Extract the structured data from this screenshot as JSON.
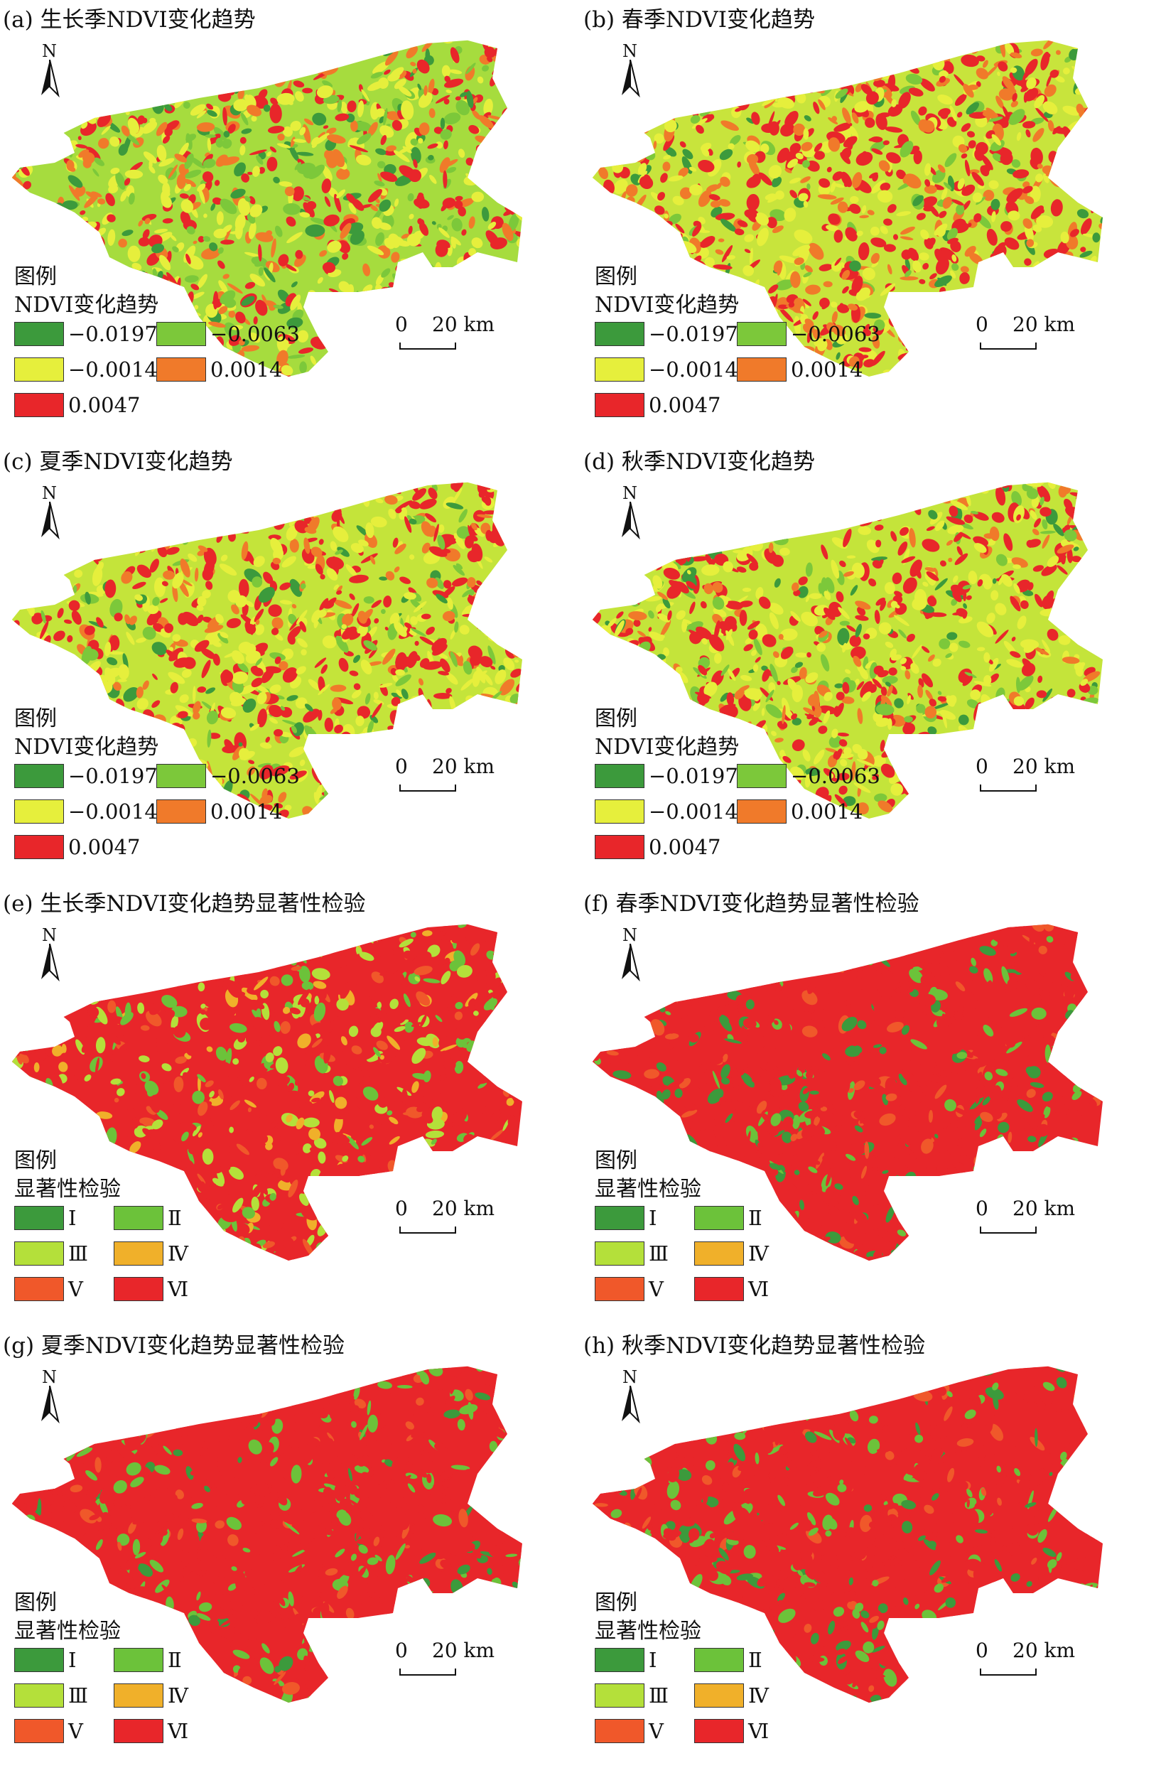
{
  "panels": [
    {
      "title": "(a) 生长季NDVI变化趋势",
      "type": "trend",
      "scheme": "a"
    },
    {
      "title": "(b) 春季NDVI变化趋势",
      "type": "trend",
      "scheme": "b"
    },
    {
      "title": "(c) 夏季NDVI变化趋势",
      "type": "trend",
      "scheme": "c"
    },
    {
      "title": "(d) 秋季NDVI变化趋势",
      "type": "trend",
      "scheme": "c"
    },
    {
      "title": "(e) 生长季NDVI变化趋势显著性检验",
      "type": "sig",
      "scheme": "e"
    },
    {
      "title": "(f) 春季NDVI变化趋势显著性检验",
      "type": "sig",
      "scheme": "f"
    },
    {
      "title": "(g) 夏季NDVI变化趋势显著性检验",
      "type": "sig",
      "scheme": "g"
    },
    {
      "title": "(h) 秋季NDVI变化趋势显著性检验",
      "type": "sig",
      "scheme": "g"
    }
  ],
  "legend": {
    "title": "图例",
    "trend_subtitle": "NDVI变化趋势",
    "sig_subtitle": "显著性检验",
    "trend_classes": [
      {
        "label": "−0.0197",
        "color": "#3c9a3c"
      },
      {
        "label": "−0.0063",
        "color": "#7cc83a"
      },
      {
        "label": "−0.0014",
        "color": "#e6ef3c"
      },
      {
        "label": "0.0014",
        "color": "#f07a2a"
      },
      {
        "label": "0.0047",
        "color": "#e8262a"
      }
    ],
    "sig_classes": [
      {
        "label": "Ⅰ",
        "color": "#3c9a3c"
      },
      {
        "label": "Ⅱ",
        "color": "#6cc23a"
      },
      {
        "label": "Ⅲ",
        "color": "#b4e03a"
      },
      {
        "label": "Ⅳ",
        "color": "#f0b02a"
      },
      {
        "label": "Ⅴ",
        "color": "#f0582a"
      },
      {
        "label": "Ⅵ",
        "color": "#e8262a"
      }
    ]
  },
  "north_label": "N",
  "scale": {
    "zero": "0",
    "distance": "20 km"
  }
}
